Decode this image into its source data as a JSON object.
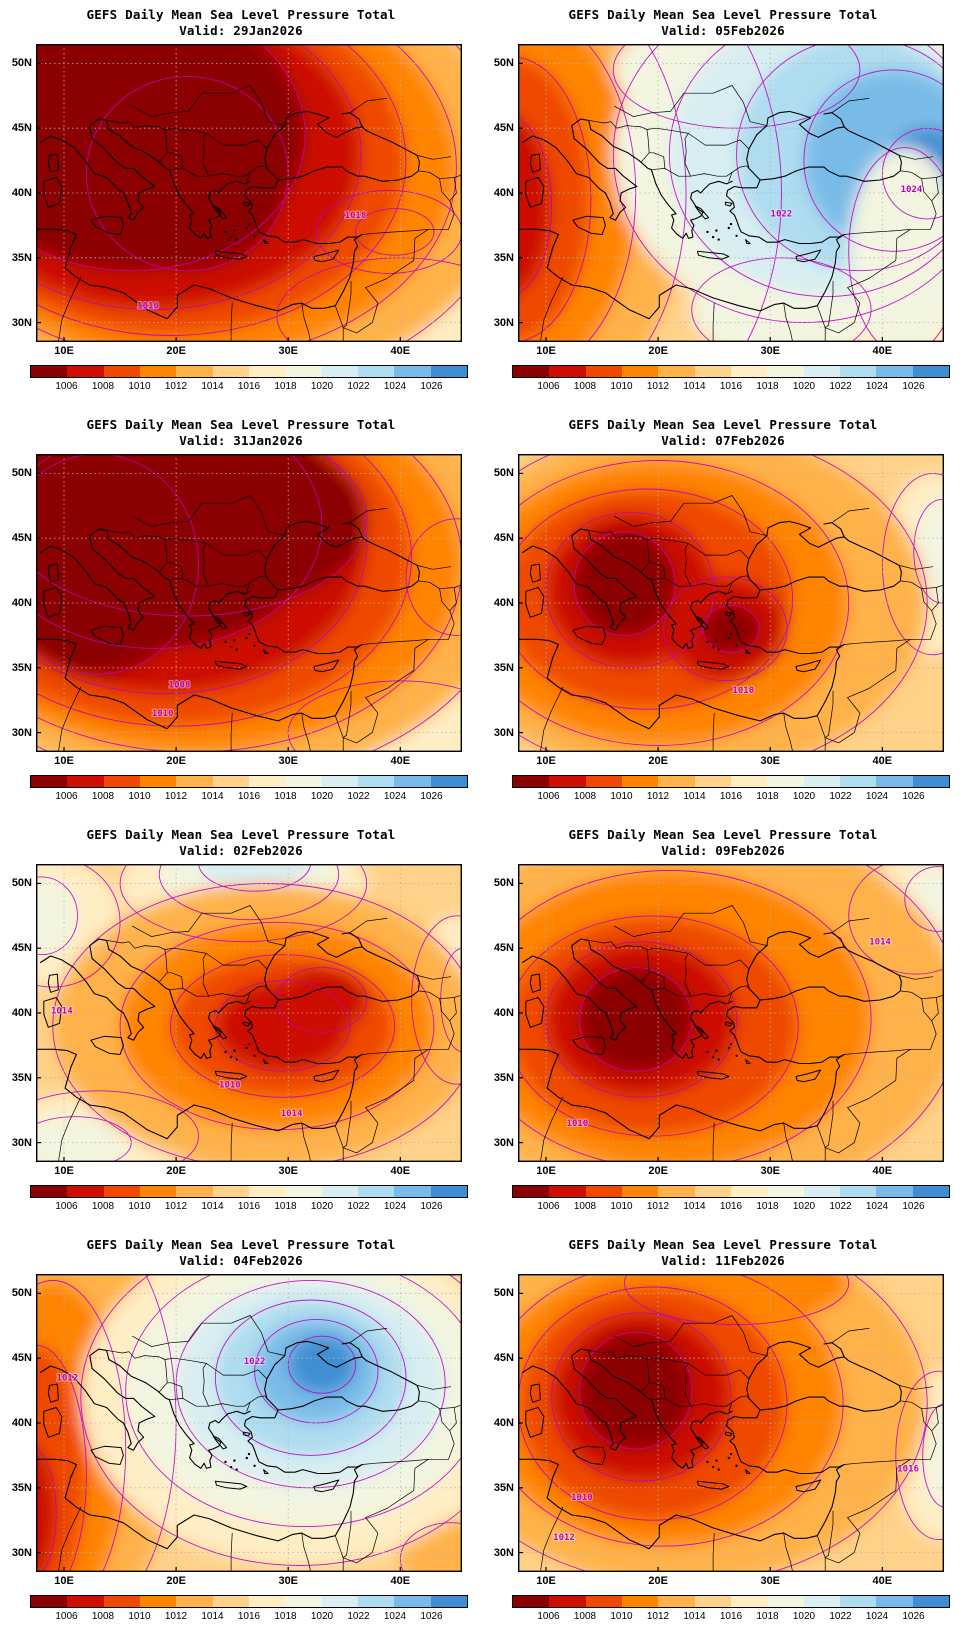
{
  "shared": {
    "product_title": "GEFS Daily Mean Sea Level Pressure Total"
  },
  "axes": {
    "lat_ticks": [
      {
        "label": "50N",
        "deg": 50
      },
      {
        "label": "45N",
        "deg": 45
      },
      {
        "label": "40N",
        "deg": 40
      },
      {
        "label": "35N",
        "deg": 35
      },
      {
        "label": "30N",
        "deg": 30
      }
    ],
    "lon_ticks": [
      {
        "label": "10E",
        "deg": 10
      },
      {
        "label": "20E",
        "deg": 20
      },
      {
        "label": "30E",
        "deg": 30
      },
      {
        "label": "40E",
        "deg": 40
      }
    ]
  },
  "colorbar": {
    "tick_labels": [
      "1006",
      "1008",
      "1010",
      "1012",
      "1014",
      "1016",
      "1018",
      "1020",
      "1022",
      "1024",
      "1026"
    ],
    "colors": [
      "#8b0000",
      "#cc0f00",
      "#ef4800",
      "#ff8400",
      "#ffb24a",
      "#ffd28a",
      "#ffedc4",
      "#f3f5e0",
      "#d9eef2",
      "#aedcf0",
      "#79bbe8",
      "#3f8ed3"
    ],
    "contour_line_color": "#bf00bf"
  },
  "chart_data": {
    "type": "heatmap",
    "title": "GEFS Daily Mean Sea Level Pressure Total",
    "lon_range": [
      7.5,
      45.5
    ],
    "lat_range": [
      28.5,
      51.5
    ],
    "x_ticks": [
      "10E",
      "20E",
      "30E",
      "40E"
    ],
    "y_ticks": [
      "50N",
      "45N",
      "40N",
      "35N",
      "30N"
    ],
    "levels_hpa": [
      1006,
      1008,
      1010,
      1012,
      1014,
      1016,
      1018,
      1020,
      1022,
      1024,
      1026
    ],
    "panels": [
      {
        "valid": "Valid: 29Jan2026",
        "base": 1015,
        "blobs": [
          [
            40,
            30.5,
            11,
            4.5,
            1017
          ],
          [
            39,
            37,
            6.5,
            3.2,
            1019
          ],
          [
            39.5,
            37,
            3.5,
            1.8,
            1021
          ],
          [
            23,
            41.5,
            27,
            17,
            1013
          ],
          [
            21,
            42,
            24,
            15,
            1011
          ],
          [
            19.5,
            42.5,
            21,
            13.5,
            1009
          ],
          [
            18,
            43,
            18.5,
            12,
            1007
          ],
          [
            16,
            44.5,
            15.5,
            10.5,
            1005
          ],
          [
            21,
            41.5,
            9,
            7.5,
            1005
          ]
        ],
        "contour_labels": [
          {
            "text": "1018",
            "lon": 36.0,
            "lat": 38.3
          },
          {
            "text": "1010",
            "lon": 17.5,
            "lat": 31.3
          }
        ]
      },
      {
        "valid": "Valid: 05Feb2026",
        "base": 1017,
        "blobs": [
          [
            14,
            40,
            17,
            20,
            1015
          ],
          [
            9.5,
            40,
            13,
            17,
            1013
          ],
          [
            8,
            40,
            10,
            14,
            1011
          ],
          [
            7,
            39.5,
            7,
            11,
            1009
          ],
          [
            6.5,
            39,
            4,
            7,
            1007
          ],
          [
            27,
            49.5,
            11,
            4.5,
            1019
          ],
          [
            31,
            31,
            8,
            4,
            1019
          ],
          [
            33,
            43,
            17,
            13,
            1019
          ],
          [
            35,
            43,
            14,
            11,
            1021
          ],
          [
            38,
            43,
            11,
            9,
            1023
          ],
          [
            41,
            42.5,
            8,
            7,
            1025
          ],
          [
            44,
            41.5,
            4,
            3.5,
            1027
          ],
          [
            42,
            35.5,
            5,
            8,
            1019
          ]
        ],
        "contour_labels": [
          {
            "text": "1022",
            "lon": 31.0,
            "lat": 38.4
          },
          {
            "text": "1024",
            "lon": 42.6,
            "lat": 40.3
          }
        ]
      },
      {
        "valid": "Valid: 31Jan2026",
        "base": 1015,
        "blobs": [
          [
            40,
            30,
            10,
            4,
            1017
          ],
          [
            45,
            42,
            4.5,
            4.5,
            1019
          ],
          [
            23,
            42.5,
            27,
            16.5,
            1013
          ],
          [
            21.5,
            43,
            24,
            14.5,
            1011
          ],
          [
            20,
            43.5,
            21,
            13,
            1009
          ],
          [
            19,
            44.5,
            18,
            11.5,
            1007
          ],
          [
            18,
            46,
            15,
            9.5,
            1005
          ],
          [
            21,
            46.5,
            16,
            7.5,
            1005
          ],
          [
            13,
            43,
            9,
            8.5,
            1005
          ]
        ],
        "contour_labels": [
          {
            "text": "1008",
            "lon": 20.3,
            "lat": 33.7
          },
          {
            "text": "1010",
            "lon": 18.8,
            "lat": 31.5
          }
        ]
      },
      {
        "valid": "Valid: 07Feb2026",
        "base": 1015,
        "blobs": [
          [
            44.5,
            43,
            4.5,
            7,
            1017
          ],
          [
            45.3,
            44,
            2.5,
            4,
            1019
          ],
          [
            22,
            40,
            22,
            13.5,
            1013
          ],
          [
            20,
            40,
            17,
            11,
            1011
          ],
          [
            19,
            40.3,
            13,
            8.5,
            1009
          ],
          [
            17.5,
            41,
            7.5,
            6,
            1007
          ],
          [
            26,
            38,
            5.5,
            4,
            1007
          ],
          [
            17,
            41.5,
            4.5,
            4,
            1005
          ],
          [
            26.5,
            38,
            2.5,
            1.8,
            1005
          ]
        ],
        "contour_labels": [
          {
            "text": "1010",
            "lon": 27.6,
            "lat": 33.3
          }
        ]
      },
      {
        "valid": "Valid: 02Feb2026",
        "base": 1015,
        "blobs": [
          [
            9,
            47,
            6,
            5,
            1017
          ],
          [
            8,
            47.5,
            3.2,
            3,
            1019
          ],
          [
            26,
            50,
            11,
            4.5,
            1017
          ],
          [
            26.5,
            50.7,
            8,
            3.5,
            1019
          ],
          [
            27,
            51.6,
            5,
            2.2,
            1021
          ],
          [
            13,
            30.5,
            9,
            3.5,
            1017
          ],
          [
            11,
            30,
            5,
            2,
            1019
          ],
          [
            45,
            41,
            4,
            6.5,
            1017
          ],
          [
            45.6,
            41,
            2,
            4,
            1019
          ],
          [
            28,
            39,
            19,
            11,
            1013
          ],
          [
            29,
            39,
            14,
            8,
            1011
          ],
          [
            29.5,
            39,
            10,
            5.5,
            1009
          ],
          [
            29.5,
            39,
            6,
            3.5,
            1007
          ],
          [
            33,
            41,
            4,
            2.5,
            1007
          ]
        ],
        "contour_labels": [
          {
            "text": "1014",
            "lon": 9.8,
            "lat": 40.2
          },
          {
            "text": "1010",
            "lon": 24.8,
            "lat": 34.5
          },
          {
            "text": "1014",
            "lon": 30.3,
            "lat": 32.3
          }
        ]
      },
      {
        "valid": "Valid: 09Feb2026",
        "base": 1015,
        "blobs": [
          [
            43,
            47.5,
            6,
            4.5,
            1017
          ],
          [
            45,
            48.8,
            3,
            2.5,
            1019
          ],
          [
            23,
            40,
            24,
            15,
            1013
          ],
          [
            21,
            39.5,
            18,
            11.5,
            1011
          ],
          [
            19.5,
            39,
            13,
            8.5,
            1009
          ],
          [
            18.5,
            39.5,
            8.5,
            6,
            1007
          ],
          [
            18,
            39.5,
            5,
            4,
            1005
          ]
        ],
        "contour_labels": [
          {
            "text": "1014",
            "lon": 39.8,
            "lat": 45.5
          },
          {
            "text": "1010",
            "lon": 12.8,
            "lat": 31.5
          }
        ]
      },
      {
        "valid": "Valid: 04Feb2026",
        "base": 1015,
        "blobs": [
          [
            11,
            40,
            9,
            16,
            1013
          ],
          [
            9,
            38,
            6.5,
            13,
            1011
          ],
          [
            7.5,
            36,
            4.5,
            10,
            1009
          ],
          [
            6.5,
            33,
            2.8,
            5.5,
            1007
          ],
          [
            44.5,
            29.5,
            4.5,
            2.8,
            1013
          ],
          [
            31,
            42,
            19.5,
            13,
            1017
          ],
          [
            31.5,
            42.5,
            16,
            10.5,
            1019
          ],
          [
            32,
            43,
            12,
            8,
            1021
          ],
          [
            32,
            43.5,
            8.5,
            6,
            1023
          ],
          [
            32.5,
            44,
            5.5,
            4,
            1025
          ],
          [
            33,
            44.5,
            3,
            2.2,
            1027
          ]
        ],
        "contour_labels": [
          {
            "text": "1012",
            "lon": 10.3,
            "lat": 43.5
          },
          {
            "text": "1022",
            "lon": 27.0,
            "lat": 44.8
          }
        ]
      },
      {
        "valid": "Valid: 11Feb2026",
        "base": 1015,
        "blobs": [
          [
            45,
            37.5,
            3.8,
            6.5,
            1017
          ],
          [
            45.6,
            37.5,
            2,
            4,
            1019
          ],
          [
            22,
            41.5,
            22,
            14,
            1013
          ],
          [
            27,
            50.8,
            10,
            3.2,
            1011
          ],
          [
            20.5,
            41.5,
            16,
            11,
            1011
          ],
          [
            19.5,
            41.5,
            12,
            9,
            1009
          ],
          [
            18.5,
            42,
            8,
            6.5,
            1007
          ],
          [
            18,
            42.5,
            5,
            4.5,
            1005
          ]
        ],
        "contour_labels": [
          {
            "text": "1010",
            "lon": 13.2,
            "lat": 34.3
          },
          {
            "text": "1012",
            "lon": 11.6,
            "lat": 31.2
          },
          {
            "text": "1016",
            "lon": 42.3,
            "lat": 36.5
          }
        ]
      }
    ]
  }
}
